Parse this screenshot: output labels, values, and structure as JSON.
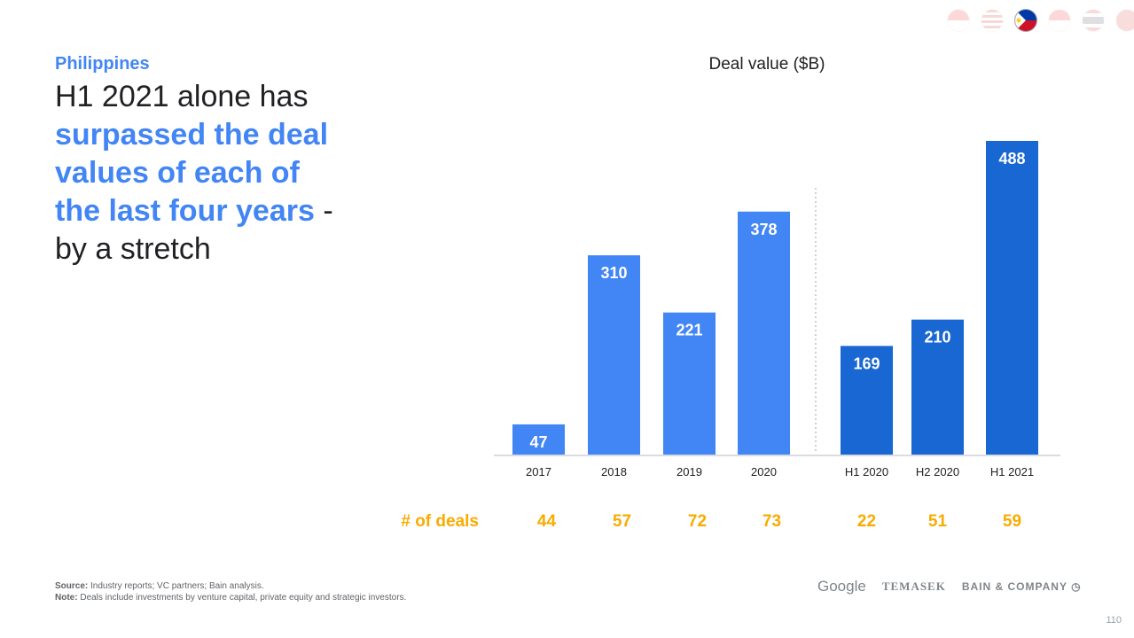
{
  "flags": [
    {
      "name": "indonesia",
      "active": false
    },
    {
      "name": "malaysia",
      "active": false
    },
    {
      "name": "philippines",
      "active": true
    },
    {
      "name": "singapore",
      "active": false
    },
    {
      "name": "thailand",
      "active": false
    },
    {
      "name": "vietnam",
      "active": false
    }
  ],
  "country": "Philippines",
  "headline": {
    "part1": "H1 2021 alone has ",
    "highlight": "surpassed the deal values of each of the last four years",
    "part2": " - by a stretch"
  },
  "chart_data": {
    "type": "bar",
    "title": "Deal value ($B)",
    "categories": [
      "2017",
      "2018",
      "2019",
      "2020",
      "H1 2020",
      "H2 2020",
      "H1 2021"
    ],
    "values": [
      47,
      310,
      221,
      378,
      169,
      210,
      488
    ],
    "groups": [
      "annual",
      "annual",
      "annual",
      "annual",
      "half",
      "half",
      "half"
    ],
    "colors": {
      "annual": "#4285F4",
      "half": "#1967D2"
    },
    "ylim": [
      0,
      488
    ],
    "secondary_row": {
      "label": "# of deals",
      "values": [
        44,
        57,
        72,
        73,
        22,
        51,
        59
      ],
      "color": "#F9AB00"
    }
  },
  "footer": {
    "source_label": "Source:",
    "source": " Industry reports; VC partners; Bain analysis.",
    "note_label": "Note:",
    "note": " Deals include investments by venture capital, private equity and strategic investors."
  },
  "logos": {
    "google": "Google",
    "temasek": "TEMASEK",
    "bain": "BAIN & COMPANY"
  },
  "page_number": "110"
}
